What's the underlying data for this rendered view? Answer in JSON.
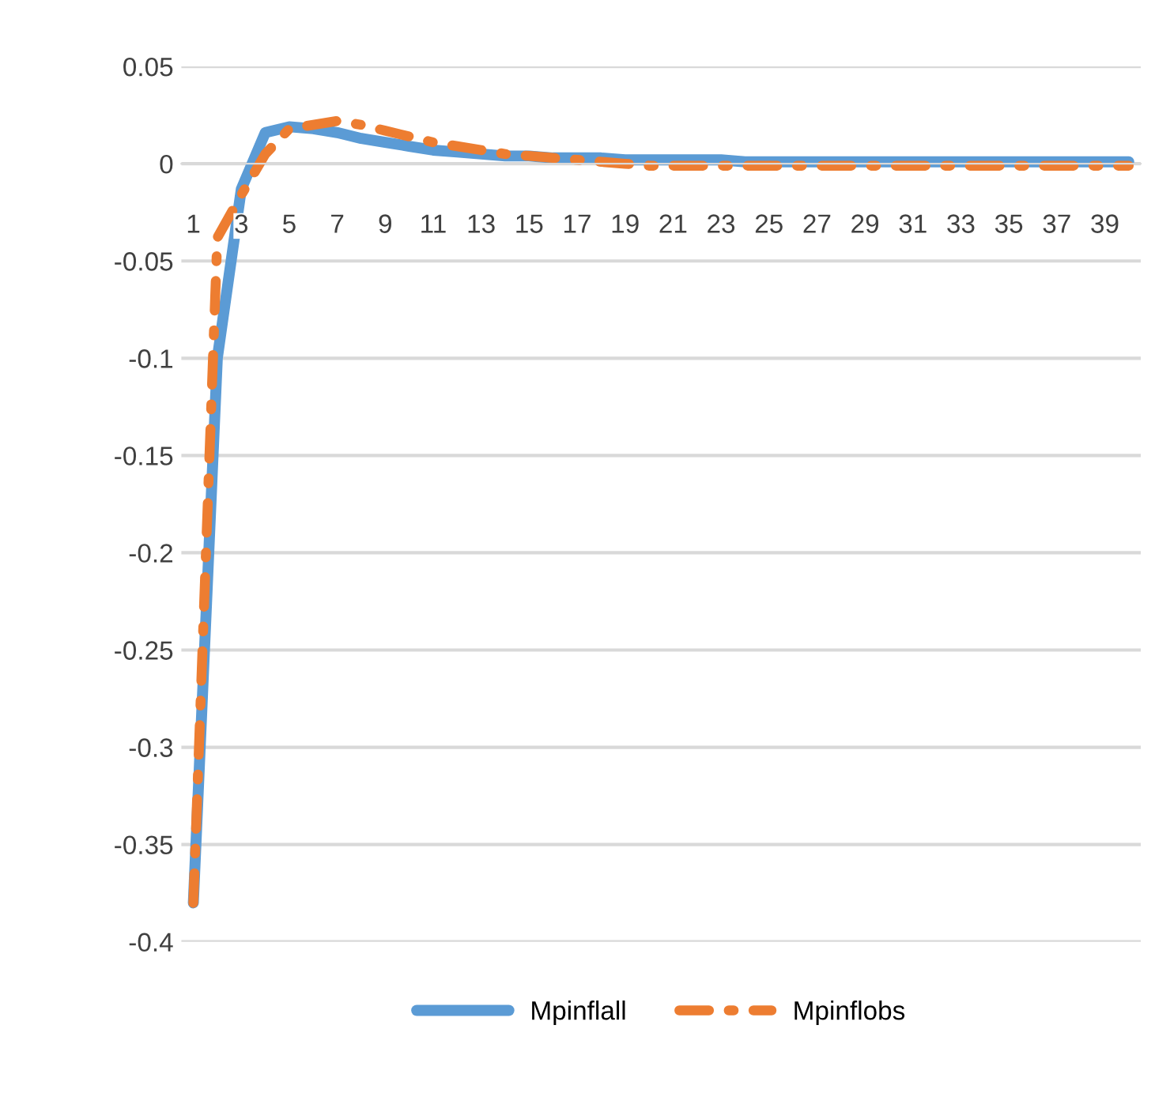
{
  "chart_data": {
    "type": "line",
    "categories": [
      "1",
      null,
      "3",
      null,
      "5",
      null,
      "7",
      null,
      "9",
      null,
      "11",
      null,
      "13",
      null,
      "15",
      null,
      "17",
      null,
      "19",
      null,
      "21",
      null,
      "23",
      null,
      "25",
      null,
      "27",
      null,
      "29",
      null,
      "31",
      null,
      "33",
      null,
      "35",
      null,
      "37",
      null,
      "39",
      null
    ],
    "series": [
      {
        "name": "Mpinflall",
        "color": "#5b9bd5",
        "line_style": "solid",
        "values": [
          -0.38,
          -0.1,
          -0.013,
          0.016,
          0.019,
          0.018,
          0.016,
          0.013,
          0.011,
          0.009,
          0.007,
          0.006,
          0.005,
          0.004,
          0.004,
          0.003,
          0.003,
          0.003,
          0.002,
          0.002,
          0.002,
          0.002,
          0.002,
          0.001,
          0.001,
          0.001,
          0.001,
          0.001,
          0.001,
          0.001,
          0.001,
          0.001,
          0.001,
          0.001,
          0.001,
          0.001,
          0.001,
          0.001,
          0.001,
          0.001
        ]
      },
      {
        "name": "Mpinflobs",
        "color": "#ed7d31",
        "line_style": "dashdot",
        "values": [
          -0.38,
          -0.038,
          -0.016,
          0.005,
          0.018,
          0.02,
          0.022,
          0.02,
          0.017,
          0.014,
          0.011,
          0.009,
          0.007,
          0.005,
          0.004,
          0.003,
          0.002,
          0.001,
          0.0,
          -0.001,
          -0.001,
          -0.001,
          -0.001,
          -0.001,
          -0.001,
          -0.001,
          -0.001,
          -0.001,
          -0.001,
          -0.001,
          -0.001,
          -0.001,
          -0.001,
          -0.001,
          -0.001,
          -0.001,
          -0.001,
          -0.001,
          -0.001,
          -0.001
        ]
      }
    ],
    "ylim": [
      -0.4,
      0.05
    ],
    "yticks": [
      0.05,
      {
        "value": 0,
        "label": "0"
      },
      -0.05,
      -0.1,
      -0.15,
      -0.2,
      -0.25,
      -0.3,
      -0.35,
      -0.4
    ],
    "grid": "y",
    "legend": "bottom",
    "marker": "none"
  }
}
